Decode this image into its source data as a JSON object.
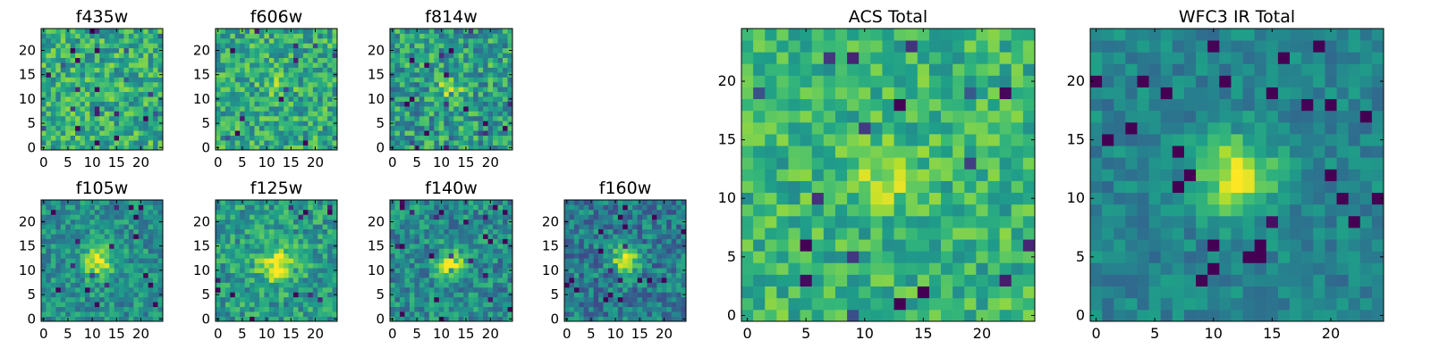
{
  "figure": {
    "colormap": "viridis",
    "colormap_stops": [
      "#440154",
      "#482878",
      "#3e4989",
      "#31688e",
      "#26828e",
      "#1f9e89",
      "#35b779",
      "#6ece58",
      "#b5de2b",
      "#fde725"
    ]
  },
  "chart_data": [
    {
      "type": "heatmap",
      "title": "f435w",
      "shape": [
        25,
        25
      ],
      "xticks": [
        0,
        5,
        10,
        15,
        20
      ],
      "yticks": [
        0,
        5,
        10,
        15,
        20
      ],
      "xlim": [
        0,
        24
      ],
      "ylim": [
        0,
        24
      ],
      "peak": null,
      "noise": 0.22,
      "base": 0.62
    },
    {
      "type": "heatmap",
      "title": "f606w",
      "shape": [
        25,
        25
      ],
      "xticks": [
        0,
        5,
        10,
        15,
        20
      ],
      "yticks": [
        0,
        5,
        10,
        15,
        20
      ],
      "xlim": [
        0,
        24
      ],
      "ylim": [
        0,
        24
      ],
      "peak": {
        "x": 12,
        "y": 12,
        "amp": 0.15,
        "sigma": 2.0
      },
      "noise": 0.22,
      "base": 0.6
    },
    {
      "type": "heatmap",
      "title": "f814w",
      "shape": [
        25,
        25
      ],
      "xticks": [
        0,
        5,
        10,
        15,
        20
      ],
      "yticks": [
        0,
        5,
        10,
        15,
        20
      ],
      "xlim": [
        0,
        24
      ],
      "ylim": [
        0,
        24
      ],
      "peak": {
        "x": 12,
        "y": 12,
        "amp": 0.3,
        "sigma": 2.0
      },
      "noise": 0.24,
      "base": 0.55
    },
    {
      "type": "heatmap",
      "title": "f105w",
      "shape": [
        25,
        25
      ],
      "xticks": [
        0,
        5,
        10,
        15,
        20
      ],
      "yticks": [
        0,
        5,
        10,
        15,
        20
      ],
      "xlim": [
        0,
        24
      ],
      "ylim": [
        0,
        24
      ],
      "peak": {
        "x": 11,
        "y": 12,
        "amp": 0.45,
        "sigma": 2.2
      },
      "noise": 0.18,
      "base": 0.5
    },
    {
      "type": "heatmap",
      "title": "f125w",
      "shape": [
        25,
        25
      ],
      "xticks": [
        0,
        5,
        10,
        15,
        20
      ],
      "yticks": [
        0,
        5,
        10,
        15,
        20
      ],
      "xlim": [
        0,
        24
      ],
      "ylim": [
        0,
        24
      ],
      "peak": {
        "x": 12,
        "y": 11,
        "amp": 0.45,
        "sigma": 2.4
      },
      "noise": 0.2,
      "base": 0.55
    },
    {
      "type": "heatmap",
      "title": "f140w",
      "shape": [
        25,
        25
      ],
      "xticks": [
        0,
        5,
        10,
        15,
        20
      ],
      "yticks": [
        0,
        5,
        10,
        15,
        20
      ],
      "xlim": [
        0,
        24
      ],
      "ylim": [
        0,
        24
      ],
      "peak": {
        "x": 12,
        "y": 11,
        "amp": 0.45,
        "sigma": 2.0
      },
      "noise": 0.2,
      "base": 0.48
    },
    {
      "type": "heatmap",
      "title": "f160w",
      "shape": [
        25,
        25
      ],
      "xticks": [
        0,
        5,
        10,
        15,
        20
      ],
      "yticks": [
        0,
        5,
        10,
        15,
        20
      ],
      "xlim": [
        0,
        24
      ],
      "ylim": [
        0,
        24
      ],
      "peak": {
        "x": 12,
        "y": 12,
        "amp": 0.55,
        "sigma": 1.9
      },
      "noise": 0.2,
      "base": 0.42
    },
    {
      "type": "heatmap",
      "title": "ACS Total",
      "shape": [
        25,
        25
      ],
      "xticks": [
        0,
        5,
        10,
        15,
        20
      ],
      "yticks": [
        0,
        5,
        10,
        15,
        20
      ],
      "xlim": [
        0,
        24
      ],
      "ylim": [
        0,
        24
      ],
      "peak": {
        "x": 12,
        "y": 12,
        "amp": 0.22,
        "sigma": 2.0
      },
      "noise": 0.18,
      "base": 0.65
    },
    {
      "type": "heatmap",
      "title": "WFC3 IR Total",
      "shape": [
        25,
        25
      ],
      "xticks": [
        0,
        5,
        10,
        15,
        20
      ],
      "yticks": [
        0,
        5,
        10,
        15,
        20
      ],
      "xlim": [
        0,
        24
      ],
      "ylim": [
        0,
        24
      ],
      "peak": {
        "x": 12,
        "y": 12,
        "amp": 0.55,
        "sigma": 2.2
      },
      "noise": 0.12,
      "base": 0.45
    }
  ]
}
